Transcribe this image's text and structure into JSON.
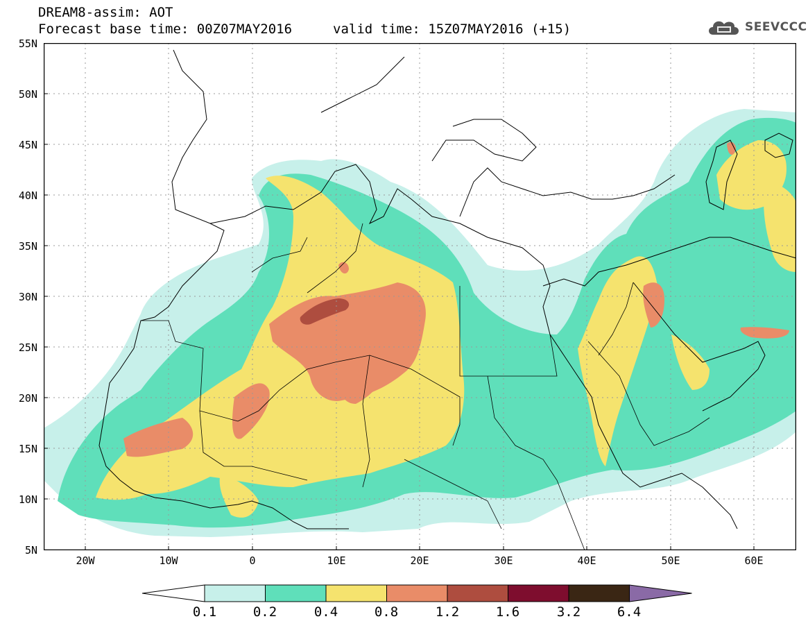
{
  "header": {
    "title_line1": "DREAM8-assim: AOT",
    "title_line2": "Forecast base time: 00Z07MAY2016",
    "valid_time": "valid time: 15Z07MAY2016 (+15)",
    "logo_text": "SEEVCCC"
  },
  "map": {
    "variable": "AOT",
    "lat_labels": [
      "55N",
      "50N",
      "45N",
      "40N",
      "35N",
      "30N",
      "25N",
      "20N",
      "15N",
      "10N",
      "5N"
    ],
    "lon_labels": [
      "20W",
      "10W",
      "0",
      "10E",
      "20E",
      "30E",
      "40E",
      "50E",
      "60E"
    ],
    "lon_range": [
      -25,
      65
    ],
    "lat_range": [
      5,
      55
    ]
  },
  "legend": {
    "levels": [
      "0.1",
      "0.2",
      "0.4",
      "0.8",
      "1.2",
      "1.6",
      "3.2",
      "6.4"
    ],
    "colors": [
      "#ffffff",
      "#c7f0ea",
      "#5fdfba",
      "#f5e36e",
      "#e98c68",
      "#ae4d3f",
      "#7e0d2e",
      "#3a2614",
      "#8a6aa6"
    ]
  }
}
